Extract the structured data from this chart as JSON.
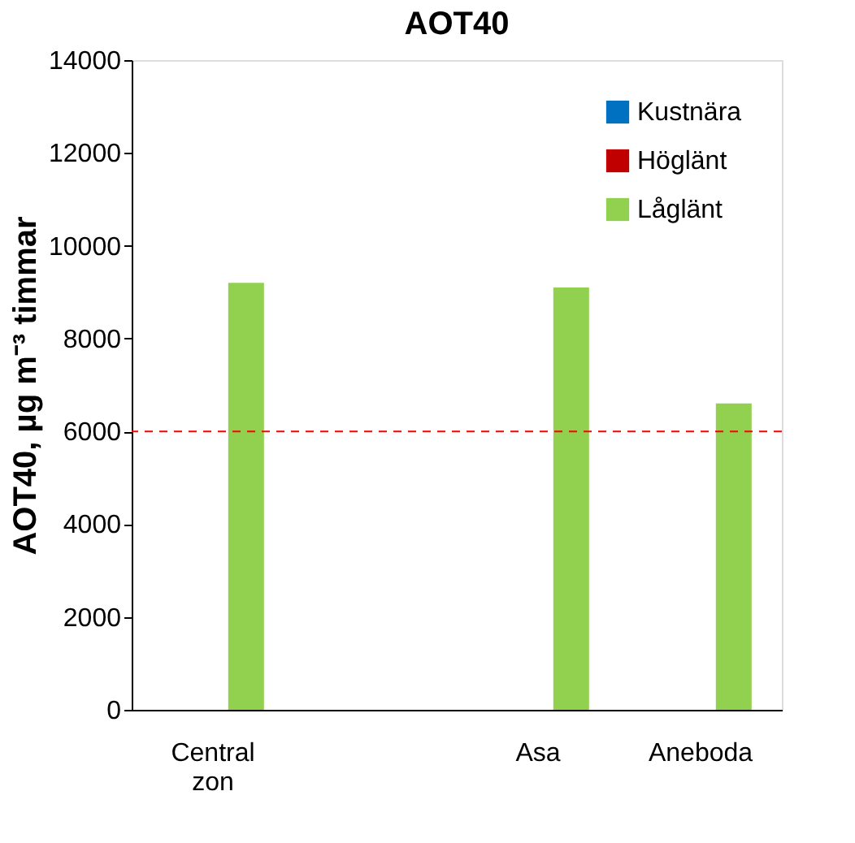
{
  "chart_data": {
    "type": "bar",
    "title": "AOT40",
    "ylabel": "AOT40, µg m⁻³ timmar",
    "categories": [
      "Central zon",
      null,
      "Asa",
      "Aneboda"
    ],
    "series": [
      {
        "name": "Kustnära",
        "color": "#0070c0",
        "values": [
          null,
          null,
          null,
          null
        ]
      },
      {
        "name": "Höglänt",
        "color": "#c00000",
        "values": [
          null,
          null,
          null,
          null
        ]
      },
      {
        "name": "Låglänt",
        "color": "#92d050",
        "values": [
          9200,
          null,
          9100,
          6600
        ]
      }
    ],
    "ylim": [
      0,
      14000
    ],
    "yticks": [
      0,
      2000,
      4000,
      6000,
      8000,
      10000,
      12000,
      14000
    ],
    "ref_lines": [
      {
        "axis": "y",
        "value": 6000,
        "color": "#ff0000",
        "line_style": "dashed"
      }
    ],
    "legend": "top right",
    "grid": false
  }
}
